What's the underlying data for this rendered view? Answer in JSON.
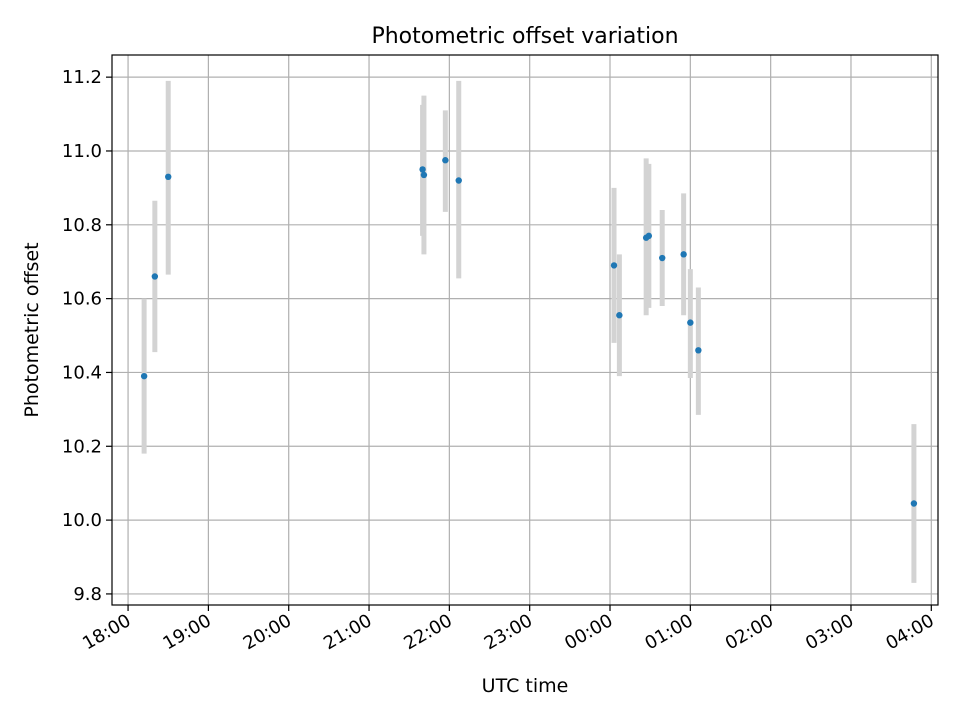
{
  "chart_data": {
    "type": "scatter",
    "title": "Photometric offset variation",
    "xlabel": "UTC time",
    "ylabel": "Photometric offset",
    "x_ticks": [
      "18:00",
      "19:00",
      "20:00",
      "21:00",
      "22:00",
      "23:00",
      "00:00",
      "01:00",
      "02:00",
      "03:00",
      "04:00"
    ],
    "y_ticks": [
      "9.8",
      "10.0",
      "10.2",
      "10.4",
      "10.6",
      "10.8",
      "11.0",
      "11.2"
    ],
    "xlim": [
      "17:48",
      "04:05"
    ],
    "ylim": [
      9.77,
      11.26
    ],
    "grid": true,
    "colors": {
      "points": "#1f77b4",
      "errorbars": "#d3d3d3",
      "grid": "#b0b0b0"
    },
    "series": [
      {
        "x": [
          "18:12",
          "18:20",
          "18:30",
          "21:40",
          "21:41",
          "21:57",
          "22:07",
          "00:03",
          "00:07",
          "00:27",
          "00:29",
          "00:39",
          "00:55",
          "01:00",
          "01:06",
          "03:47"
        ],
        "y": [
          10.39,
          10.66,
          10.93,
          10.95,
          10.935,
          10.975,
          10.92,
          10.69,
          10.555,
          10.765,
          10.77,
          10.71,
          10.72,
          10.535,
          10.46,
          10.045
        ],
        "yerr_low": [
          10.18,
          10.455,
          10.665,
          10.77,
          10.72,
          10.835,
          10.655,
          10.48,
          10.39,
          10.555,
          10.575,
          10.58,
          10.555,
          10.385,
          10.285,
          9.83
        ],
        "yerr_high": [
          10.6,
          10.865,
          11.19,
          11.125,
          11.15,
          11.11,
          11.19,
          10.9,
          10.72,
          10.98,
          10.965,
          10.84,
          10.885,
          10.68,
          10.63,
          10.26
        ]
      }
    ]
  }
}
